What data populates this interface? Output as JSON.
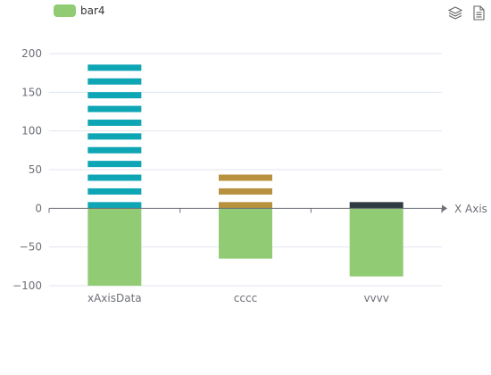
{
  "chart_data": {
    "type": "bar",
    "categories": [
      "xAxisData",
      "cccc",
      "vvvv"
    ],
    "x_axis_name": "X Axis",
    "ylim": [
      -100,
      200
    ],
    "y_ticks": [
      200,
      150,
      100,
      50,
      0,
      -50,
      -100
    ],
    "grid": true,
    "legend_position": "top-left",
    "legend": [
      {
        "name": "bar4",
        "color": "#91cc75"
      }
    ],
    "series": [
      {
        "name": "bar4",
        "values": [
          -100,
          -65,
          -88
        ],
        "color": "#91cc75",
        "style": "solid"
      },
      {
        "values": [
          200,
          0,
          0
        ],
        "color": "#0ea5b5",
        "style": "dashed"
      },
      {
        "values": [
          0,
          60,
          0
        ],
        "color": "#b8913f",
        "style": "dashed"
      },
      {
        "values": [
          0,
          0,
          25
        ],
        "color": "#2f3b40",
        "style": "dashed"
      }
    ]
  },
  "toolbox": [
    {
      "name": "layers-icon"
    },
    {
      "name": "data-view-icon"
    }
  ]
}
